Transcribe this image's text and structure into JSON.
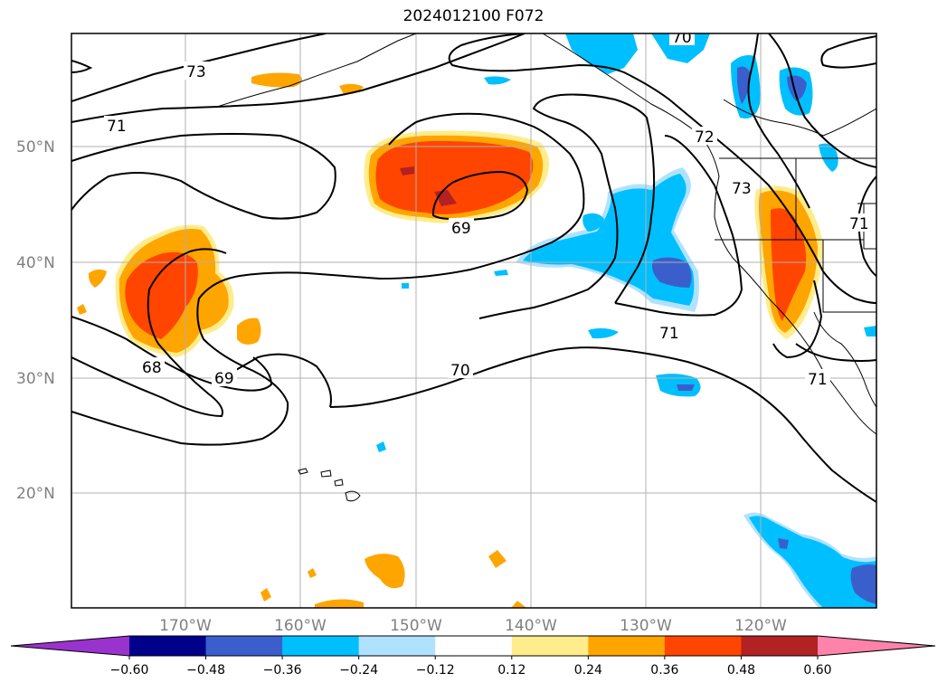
{
  "title": "2024012100 F072",
  "lat_labels": [
    "50°N",
    "40°N",
    "30°N",
    "20°N"
  ],
  "lon_labels": [
    "170°W",
    "160°W",
    "150°W",
    "140°W",
    "130°W",
    "120°W"
  ],
  "contour_labels": [
    "73",
    "71",
    "69",
    "68",
    "69",
    "70",
    "71",
    "72",
    "73",
    "70",
    "71",
    "71"
  ],
  "colorbar": {
    "colors": [
      "#9a32cd",
      "#00008b",
      "#3a5fcd",
      "#00bfff",
      "#b0e2ff",
      "#ffffff",
      "#ffec8b",
      "#ffa500",
      "#ff4500",
      "#b22222",
      "#ff82ab"
    ],
    "ticks": [
      "−0.60",
      "−0.48",
      "−0.36",
      "−0.24",
      "−0.12",
      "0.12",
      "0.24",
      "0.36",
      "0.48",
      "0.60"
    ]
  }
}
